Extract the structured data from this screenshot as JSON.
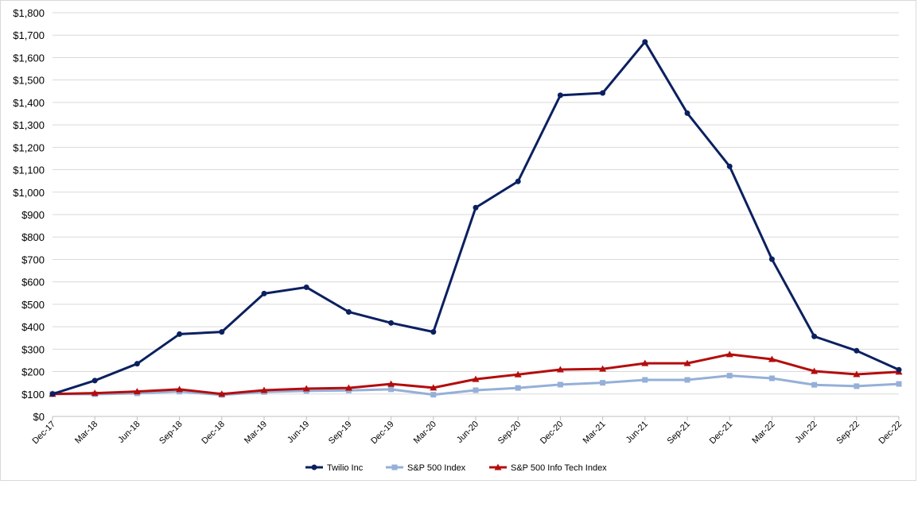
{
  "chart_data": {
    "type": "line",
    "title": "",
    "xlabel": "",
    "ylabel": "",
    "categories": [
      "Dec-17",
      "Mar-18",
      "Jun-18",
      "Sep-18",
      "Dec-18",
      "Mar-19",
      "Jun-19",
      "Sep-19",
      "Dec-19",
      "Mar-20",
      "Jun-20",
      "Sep-20",
      "Dec-20",
      "Mar-21",
      "Jun-21",
      "Sep-21",
      "Dec-21",
      "Mar-22",
      "Jun-22",
      "Sep-22",
      "Dec-22"
    ],
    "ylim": [
      0,
      1800
    ],
    "yticks": [
      0,
      100,
      200,
      300,
      400,
      500,
      600,
      700,
      800,
      900,
      1000,
      1100,
      1200,
      1300,
      1400,
      1500,
      1600,
      1700,
      1800
    ],
    "ytick_labels": [
      "$0",
      "$100",
      "$200",
      "$300",
      "$400",
      "$500",
      "$600",
      "$700",
      "$800",
      "$900",
      "$1,000",
      "$1,100",
      "$1,200",
      "$1,300",
      "$1,400",
      "$1,500",
      "$1,600",
      "$1,700",
      "$1,800"
    ],
    "grid": true,
    "legend_position": "bottom",
    "series": [
      {
        "name": "Twilio Inc",
        "color": "#0b2060",
        "marker": "circle",
        "values": [
          100,
          160,
          235,
          367,
          377,
          548,
          576,
          466,
          417,
          377,
          931,
          1048,
          1432,
          1442,
          1670,
          1352,
          1115,
          701,
          357,
          293,
          208
        ]
      },
      {
        "name": "S&P 500 Index",
        "color": "#95b0d8",
        "marker": "square",
        "values": [
          100,
          99,
          103,
          111,
          96,
          109,
          114,
          116,
          121,
          97,
          117,
          127,
          142,
          150,
          163,
          163,
          182,
          170,
          141,
          135,
          145
        ]
      },
      {
        "name": "S&P 500 Info Tech Index",
        "color": "#b40d0d",
        "marker": "triangle",
        "values": [
          100,
          104,
          111,
          121,
          100,
          117,
          124,
          127,
          145,
          128,
          166,
          187,
          209,
          212,
          237,
          237,
          277,
          255,
          202,
          188,
          199
        ]
      }
    ]
  }
}
